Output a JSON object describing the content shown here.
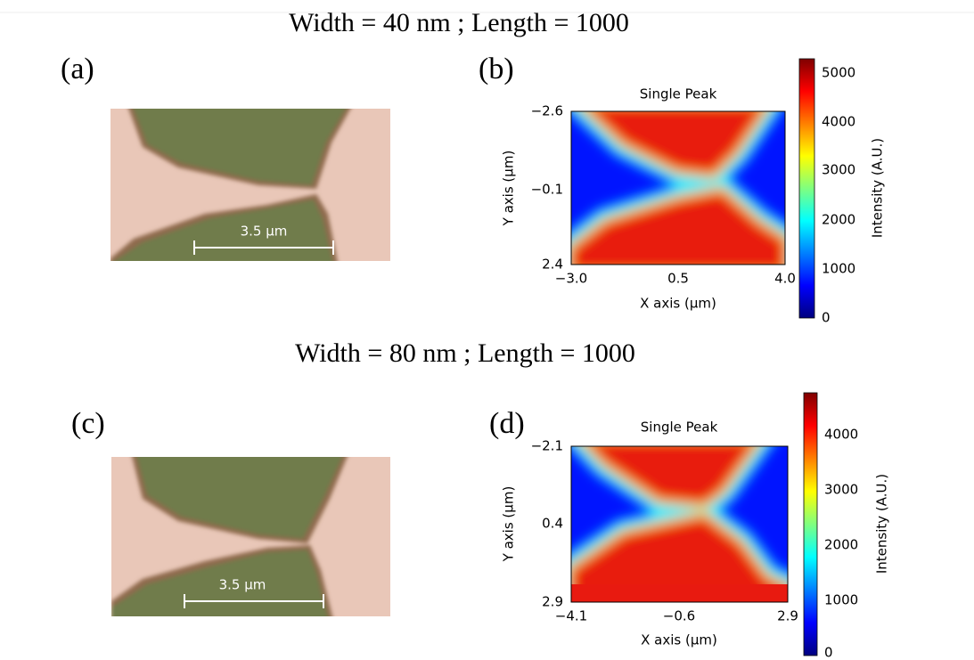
{
  "rows": [
    {
      "caption": "Width = 40 nm  ;  Length = 1000",
      "photo": {
        "label": "(a)",
        "scale_bar": "3.5 μm"
      },
      "map": {
        "label": "(b)",
        "title": "Single Peak",
        "x_label": "X axis (μm)",
        "y_label": "Y axis (μm)",
        "x_ticks": [
          "−3.0",
          "0.5",
          "4.0"
        ],
        "y_ticks": [
          "−2.6",
          "−0.1",
          "2.4"
        ],
        "colorbar_label": "Intensity (A.U.)",
        "colorbar_ticks": [
          "0",
          "1000",
          "2000",
          "3000",
          "4000",
          "5000"
        ]
      }
    },
    {
      "caption": "Width = 80 nm  ;  Length = 1000",
      "photo": {
        "label": "(c)",
        "scale_bar": "3.5 μm"
      },
      "map": {
        "label": "(d)",
        "title": "Single Peak",
        "x_label": "X axis (μm)",
        "y_label": "Y axis (μm)",
        "x_ticks": [
          "−4.1",
          "−0.6",
          "2.9"
        ],
        "y_ticks": [
          "−2.1",
          "0.4",
          "2.9"
        ],
        "colorbar_label": "Intensity (A.U.)",
        "colorbar_ticks": [
          "0",
          "1000",
          "2000",
          "3000",
          "4000"
        ]
      }
    }
  ]
}
